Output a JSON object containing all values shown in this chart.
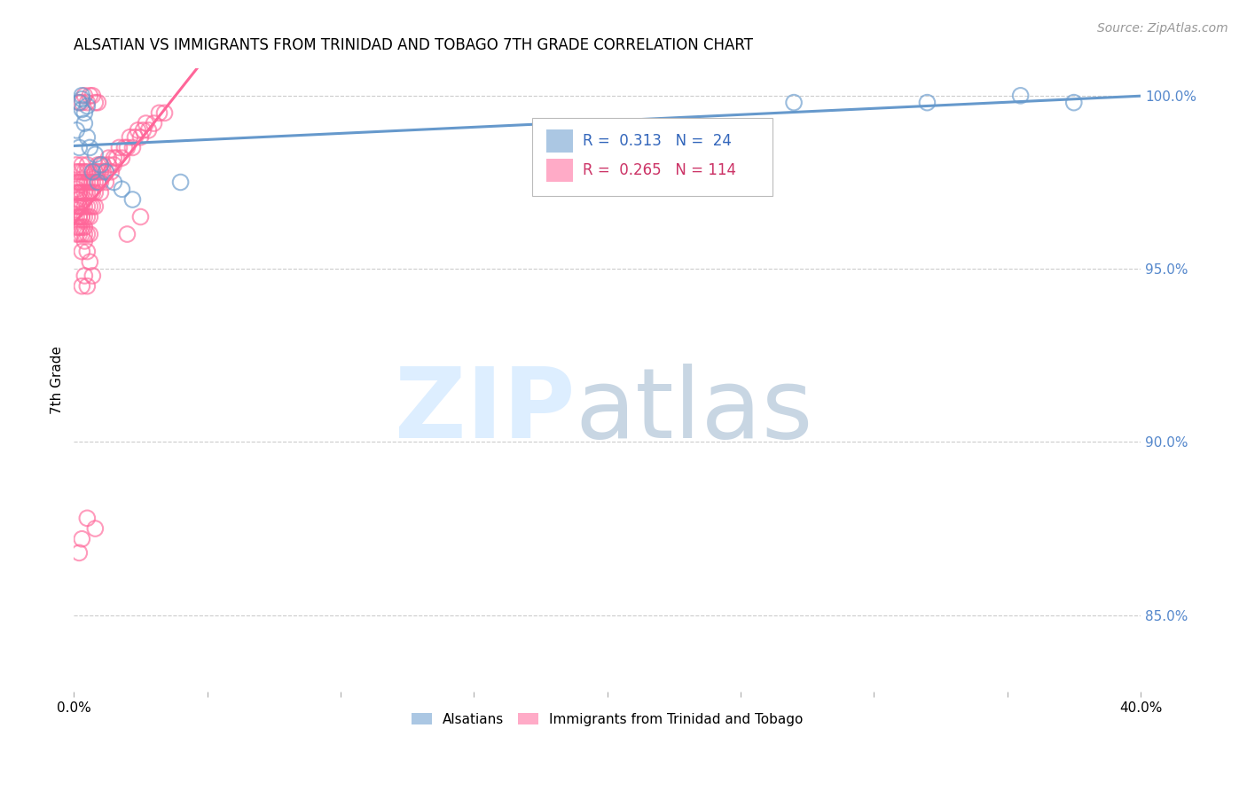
{
  "title": "ALSATIAN VS IMMIGRANTS FROM TRINIDAD AND TOBAGO 7TH GRADE CORRELATION CHART",
  "source": "Source: ZipAtlas.com",
  "ylabel": "7th Grade",
  "xlim": [
    0.0,
    0.4
  ],
  "ylim": [
    0.828,
    1.008
  ],
  "yticks_right": [
    0.85,
    0.9,
    0.95,
    1.0
  ],
  "yticklabels_right": [
    "85.0%",
    "90.0%",
    "95.0%",
    "100.0%"
  ],
  "blue_color": "#6699cc",
  "pink_color": "#ff6699",
  "blue_R": 0.313,
  "blue_N": 24,
  "pink_R": 0.265,
  "pink_N": 114,
  "legend_label_blue": "Alsatians",
  "legend_label_pink": "Immigrants from Trinidad and Tobago",
  "blue_scatter_x": [
    0.001,
    0.002,
    0.002,
    0.003,
    0.003,
    0.003,
    0.004,
    0.004,
    0.005,
    0.005,
    0.006,
    0.007,
    0.008,
    0.009,
    0.01,
    0.012,
    0.015,
    0.018,
    0.022,
    0.04,
    0.27,
    0.32,
    0.355,
    0.375
  ],
  "blue_scatter_y": [
    0.99,
    0.985,
    0.998,
    0.996,
    1.0,
    0.999,
    0.995,
    0.992,
    0.988,
    0.997,
    0.985,
    0.978,
    0.983,
    0.975,
    0.98,
    0.978,
    0.975,
    0.973,
    0.97,
    0.975,
    0.998,
    0.998,
    1.0,
    0.998
  ],
  "pink_scatter_x": [
    0.001,
    0.001,
    0.001,
    0.001,
    0.001,
    0.001,
    0.001,
    0.001,
    0.001,
    0.001,
    0.001,
    0.002,
    0.002,
    0.002,
    0.002,
    0.002,
    0.002,
    0.002,
    0.002,
    0.002,
    0.002,
    0.002,
    0.002,
    0.003,
    0.003,
    0.003,
    0.003,
    0.003,
    0.003,
    0.003,
    0.003,
    0.003,
    0.004,
    0.004,
    0.004,
    0.004,
    0.004,
    0.004,
    0.004,
    0.004,
    0.005,
    0.005,
    0.005,
    0.005,
    0.005,
    0.005,
    0.005,
    0.006,
    0.006,
    0.006,
    0.006,
    0.006,
    0.007,
    0.007,
    0.007,
    0.007,
    0.008,
    0.008,
    0.008,
    0.008,
    0.009,
    0.009,
    0.009,
    0.01,
    0.01,
    0.01,
    0.01,
    0.011,
    0.011,
    0.012,
    0.012,
    0.013,
    0.013,
    0.014,
    0.015,
    0.015,
    0.016,
    0.017,
    0.018,
    0.019,
    0.02,
    0.021,
    0.022,
    0.023,
    0.024,
    0.025,
    0.026,
    0.027,
    0.028,
    0.03,
    0.032,
    0.034,
    0.002,
    0.003,
    0.004,
    0.005,
    0.006,
    0.007,
    0.008,
    0.009,
    0.003,
    0.004,
    0.005,
    0.006,
    0.007,
    0.003,
    0.004,
    0.005,
    0.02,
    0.025,
    0.005,
    0.008,
    0.003,
    0.002
  ],
  "pink_scatter_y": [
    0.97,
    0.972,
    0.968,
    0.975,
    0.965,
    0.96,
    0.978,
    0.98,
    0.962,
    0.967,
    0.973,
    0.965,
    0.968,
    0.972,
    0.975,
    0.96,
    0.978,
    0.962,
    0.97,
    0.965,
    0.975,
    0.968,
    0.972,
    0.965,
    0.968,
    0.972,
    0.975,
    0.96,
    0.962,
    0.978,
    0.98,
    0.965,
    0.968,
    0.972,
    0.975,
    0.96,
    0.965,
    0.978,
    0.962,
    0.97,
    0.968,
    0.972,
    0.975,
    0.96,
    0.965,
    0.978,
    0.98,
    0.968,
    0.972,
    0.975,
    0.96,
    0.965,
    0.972,
    0.975,
    0.978,
    0.968,
    0.972,
    0.975,
    0.978,
    0.968,
    0.975,
    0.978,
    0.98,
    0.972,
    0.975,
    0.978,
    0.98,
    0.978,
    0.98,
    0.975,
    0.978,
    0.98,
    0.982,
    0.978,
    0.98,
    0.982,
    0.982,
    0.985,
    0.982,
    0.985,
    0.985,
    0.988,
    0.985,
    0.988,
    0.99,
    0.988,
    0.99,
    0.992,
    0.99,
    0.992,
    0.995,
    0.995,
    0.998,
    0.998,
    1.0,
    0.998,
    1.0,
    1.0,
    0.998,
    0.998,
    0.955,
    0.958,
    0.955,
    0.952,
    0.948,
    0.945,
    0.948,
    0.945,
    0.96,
    0.965,
    0.878,
    0.875,
    0.872,
    0.868
  ]
}
